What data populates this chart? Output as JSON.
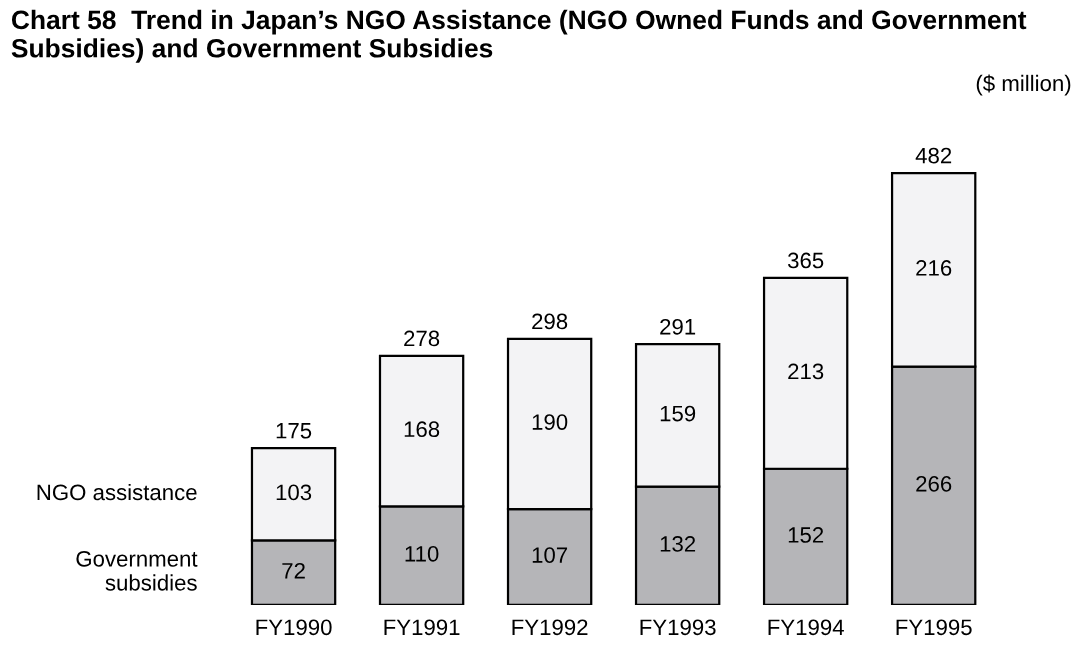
{
  "chart_data": {
    "type": "bar",
    "title": "Chart 58  Trend in Japan’s NGO Assistance (NGO Owned Funds and Government Subsidies) and Government Subsidies",
    "subtitle": "($ million)",
    "categories": [
      "FY1990",
      "FY1991",
      "FY1992",
      "FY1993",
      "FY1994",
      "FY1995"
    ],
    "stacked": true,
    "data_labels": true,
    "legend": "left",
    "series": [
      {
        "name": "Government subsidies",
        "color": "#b5b5b8",
        "values": [
          72,
          110,
          107,
          132,
          152,
          266
        ]
      },
      {
        "name": "NGO assistance",
        "color": "#f3f3f5",
        "values": [
          103,
          168,
          190,
          159,
          213,
          216
        ]
      }
    ],
    "totals": [
      "175",
      "278",
      "298",
      "291",
      "365",
      "482"
    ]
  }
}
